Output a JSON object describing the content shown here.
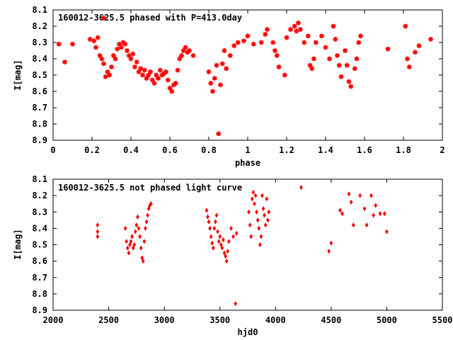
{
  "chart_data": [
    {
      "type": "scatter",
      "title": "160012-3625.5 phased with P=413.0day",
      "xlabel": "phase",
      "ylabel": "I[mag]",
      "xlim": [
        0,
        2
      ],
      "ylim": [
        8.9,
        8.1
      ],
      "y_inverted": true,
      "grid": false,
      "marker_color": "#ff0000",
      "marker": "plus",
      "x_ticks": [
        0,
        0.2,
        0.4,
        0.6,
        0.8,
        1,
        1.2,
        1.4,
        1.6,
        1.8,
        2
      ],
      "x_tick_labels": [
        "0",
        "0.2",
        "0.4",
        "0.6",
        "0.8",
        "1",
        "1.2",
        "1.4",
        "1.6",
        "1.8",
        "2"
      ],
      "y_ticks": [
        8.1,
        8.2,
        8.3,
        8.4,
        8.5,
        8.6,
        8.7,
        8.8,
        8.9
      ],
      "y_tick_labels": [
        "8.1",
        "8.2",
        "8.3",
        "8.4",
        "8.5",
        "8.6",
        "8.7",
        "8.8",
        "8.9"
      ],
      "series": [
        {
          "x": [
            0.03,
            0.06,
            0.1,
            0.19,
            0.21,
            0.22,
            0.23,
            0.24,
            0.25,
            0.26,
            0.27,
            0.28,
            0.29,
            0.3,
            0.31,
            0.32,
            0.33,
            0.34,
            0.35,
            0.36,
            0.37,
            0.38,
            0.39,
            0.4,
            0.41,
            0.42,
            0.43,
            0.44,
            0.45,
            0.46,
            0.47,
            0.48,
            0.49,
            0.5,
            0.51,
            0.52,
            0.53,
            0.54,
            0.55,
            0.56,
            0.57,
            0.58,
            0.59,
            0.6,
            0.61,
            0.62,
            0.63,
            0.64,
            0.65,
            0.66,
            0.67,
            0.68,
            0.69,
            0.7,
            0.72,
            0.8,
            0.81,
            0.82,
            0.83,
            0.84,
            0.85,
            0.86,
            0.87,
            0.88,
            0.89,
            0.91,
            0.93,
            0.95,
            0.98,
            1.0,
            1.03,
            1.07,
            1.09,
            1.1,
            1.13,
            1.14,
            1.15,
            1.16,
            1.19,
            1.2,
            1.22,
            1.24,
            1.25,
            1.26,
            1.27,
            1.29,
            1.31,
            1.32,
            1.33,
            1.34,
            1.35,
            1.38,
            1.4,
            1.42,
            1.44,
            1.45,
            1.46,
            1.47,
            1.48,
            1.5,
            1.51,
            1.52,
            1.53,
            1.55,
            1.56,
            1.57,
            1.58,
            1.72,
            1.81,
            1.82,
            1.83,
            1.86,
            1.88,
            1.94,
            0.26
          ],
          "y": [
            8.31,
            8.42,
            8.31,
            8.28,
            8.29,
            8.33,
            8.27,
            8.38,
            8.4,
            8.43,
            8.51,
            8.48,
            8.5,
            8.45,
            8.38,
            8.4,
            8.34,
            8.31,
            8.33,
            8.3,
            8.31,
            8.35,
            8.38,
            8.4,
            8.37,
            8.45,
            8.42,
            8.48,
            8.46,
            8.5,
            8.47,
            8.52,
            8.5,
            8.48,
            8.53,
            8.55,
            8.5,
            8.52,
            8.47,
            8.5,
            8.49,
            8.48,
            8.53,
            8.58,
            8.6,
            8.56,
            8.55,
            8.47,
            8.4,
            8.38,
            8.35,
            8.33,
            8.36,
            8.35,
            8.38,
            8.48,
            8.55,
            8.6,
            8.52,
            8.44,
            8.86,
            8.56,
            8.43,
            8.35,
            8.46,
            8.38,
            8.32,
            8.3,
            8.29,
            8.26,
            8.31,
            8.3,
            8.25,
            8.22,
            8.3,
            8.35,
            8.38,
            8.45,
            8.5,
            8.27,
            8.22,
            8.2,
            8.23,
            8.18,
            8.22,
            8.3,
            8.26,
            8.44,
            8.46,
            8.4,
            8.3,
            8.26,
            8.33,
            8.4,
            8.2,
            8.28,
            8.38,
            8.44,
            8.51,
            8.35,
            8.44,
            8.54,
            8.57,
            8.46,
            8.4,
            8.3,
            8.26,
            8.34,
            8.2,
            8.4,
            8.45,
            8.36,
            8.32,
            8.28,
            8.15
          ],
          "name": ""
        }
      ]
    },
    {
      "type": "scatter",
      "title": "160012-3625.5 not phased light curve",
      "xlabel": "hjd0",
      "ylabel": "I[mag]",
      "xlim": [
        2000,
        5500
      ],
      "ylim": [
        8.9,
        8.1
      ],
      "y_inverted": true,
      "grid": false,
      "marker_color": "#ff0000",
      "marker": "diamond",
      "x_ticks": [
        2000,
        2500,
        3000,
        3500,
        4000,
        4500,
        5000,
        5500
      ],
      "x_tick_labels": [
        "2000",
        "2500",
        "3000",
        "3500",
        "4000",
        "4500",
        "5000",
        "5500"
      ],
      "y_ticks": [
        8.1,
        8.2,
        8.3,
        8.4,
        8.5,
        8.6,
        8.7,
        8.8,
        8.9
      ],
      "y_tick_labels": [
        "8.1",
        "8.2",
        "8.3",
        "8.4",
        "8.5",
        "8.6",
        "8.7",
        "8.8",
        "8.9"
      ],
      "series": [
        {
          "x": [
            2400,
            2400,
            2400,
            2650,
            2660,
            2670,
            2680,
            2690,
            2700,
            2710,
            2720,
            2730,
            2740,
            2750,
            2760,
            2770,
            2780,
            2790,
            2800,
            2810,
            2820,
            2830,
            2840,
            2850,
            2860,
            2870,
            2880,
            3380,
            3390,
            3400,
            3410,
            3420,
            3430,
            3440,
            3450,
            3460,
            3470,
            3480,
            3490,
            3500,
            3510,
            3520,
            3530,
            3540,
            3550,
            3560,
            3570,
            3580,
            3600,
            3620,
            3640,
            3650,
            3760,
            3770,
            3780,
            3790,
            3800,
            3810,
            3820,
            3830,
            3840,
            3850,
            3860,
            3870,
            3880,
            3890,
            3900,
            3910,
            3920,
            3930,
            3940,
            4230,
            4480,
            4500,
            4580,
            4600,
            4660,
            4680,
            4700,
            4760,
            4800,
            4820,
            4860,
            4880,
            4900,
            4940,
            4980,
            5000
          ],
          "y": [
            8.38,
            8.42,
            8.45,
            8.4,
            8.48,
            8.52,
            8.55,
            8.5,
            8.48,
            8.45,
            8.52,
            8.5,
            8.42,
            8.38,
            8.33,
            8.4,
            8.45,
            8.52,
            8.58,
            8.6,
            8.48,
            8.4,
            8.36,
            8.32,
            8.28,
            8.26,
            8.25,
            8.29,
            8.33,
            8.36,
            8.4,
            8.45,
            8.49,
            8.52,
            8.4,
            8.36,
            8.32,
            8.42,
            8.48,
            8.45,
            8.5,
            8.52,
            8.47,
            8.55,
            8.57,
            8.6,
            8.54,
            8.48,
            8.4,
            8.45,
            8.86,
            8.43,
            8.3,
            8.38,
            8.45,
            8.22,
            8.18,
            8.25,
            8.2,
            8.3,
            8.35,
            8.4,
            8.5,
            8.45,
            8.2,
            8.28,
            8.32,
            8.38,
            8.22,
            8.35,
            8.3,
            8.15,
            8.54,
            8.49,
            8.29,
            8.31,
            8.19,
            8.24,
            8.38,
            8.2,
            8.28,
            8.38,
            8.2,
            8.32,
            8.26,
            8.31,
            8.31,
            8.42
          ],
          "name": ""
        }
      ]
    }
  ]
}
